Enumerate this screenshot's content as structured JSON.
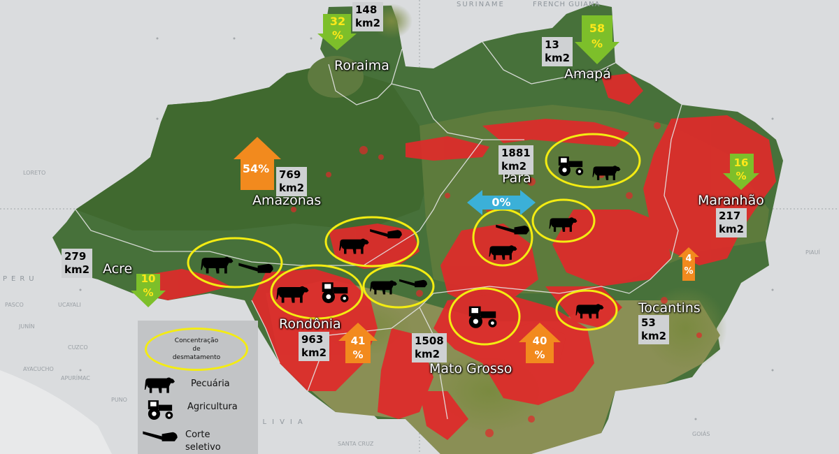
{
  "country_labels": {
    "suriname": "SURINAME",
    "french_guiana": "FRENCH GUIANA",
    "peru": "PERU",
    "bolivia": "BOLIVIA"
  },
  "city_labels": [
    "LORETO",
    "PASCO",
    "UCAYALI",
    "JUNÍN",
    "CUZCO",
    "APURÍMAC",
    "AYACUCHO",
    "PUNO",
    "PIAUÍ",
    "GOIÁS",
    "SANTA CRUZ"
  ],
  "states": [
    {
      "key": "roraima",
      "name": "Roraima",
      "area": "148\nkm2",
      "pct": "32\n%",
      "trend": "down"
    },
    {
      "key": "amapa",
      "name": "Amapá",
      "area": "13\nkm2",
      "pct": "58\n%",
      "trend": "down"
    },
    {
      "key": "amazonas",
      "name": "Amazonas",
      "area": "769\nkm2",
      "pct": "54%",
      "trend": "up"
    },
    {
      "key": "para",
      "name": "Pará",
      "area": "1881\nkm2",
      "pct": "0%",
      "trend": "flat"
    },
    {
      "key": "maranhao",
      "name": "Maranhão",
      "area": "217\nkm2",
      "pct": "16\n%",
      "trend": "down"
    },
    {
      "key": "acre",
      "name": "Acre",
      "area": "279\nkm2",
      "pct": "10\n%",
      "trend": "down"
    },
    {
      "key": "rondonia",
      "name": "Rondônia",
      "area": "963\nkm2",
      "pct": "41\n%",
      "trend": "up"
    },
    {
      "key": "mato_grosso",
      "name": "Mato Grosso",
      "area": "1508\nkm2",
      "pct": "40\n%",
      "trend": "up"
    },
    {
      "key": "tocantins",
      "name": "Tocantins",
      "area": "53\nkm2",
      "pct": "4\n%",
      "trend": "up"
    }
  ],
  "legend": {
    "concentration": "Concentração\nde\ndesmatamento",
    "pecuaria": "Pecuária",
    "agricultura": "Agricultura",
    "corte": "Corte\nseletivo"
  },
  "colors": {
    "forest": "#3f6a2e",
    "deforestation": "#e02a2a",
    "cerrado": "#9c9a5a",
    "arrow_up": "#f28a1e",
    "arrow_down": "#7dbf2a",
    "arrow_flat": "#3bb0d8",
    "pct_up_text": "#ffffff",
    "pct_down_text": "#ffe81a",
    "hotspot": "#f4ec12"
  },
  "hotspots": [
    {
      "name": "para-north",
      "icons": [
        "tractor-icon",
        "cattle-icon"
      ]
    },
    {
      "name": "para-east",
      "icons": [
        "cattle-icon"
      ]
    },
    {
      "name": "para-center",
      "icons": [
        "chainsaw-icon",
        "cattle-icon"
      ]
    },
    {
      "name": "amazonas-south",
      "icons": [
        "cattle-icon",
        "chainsaw-icon"
      ]
    },
    {
      "name": "acre",
      "icons": [
        "cattle-icon",
        "chainsaw-icon"
      ]
    },
    {
      "name": "rondonia",
      "icons": [
        "cattle-icon",
        "tractor-icon"
      ]
    },
    {
      "name": "rondonia-east",
      "icons": [
        "cattle-icon",
        "chainsaw-icon"
      ]
    },
    {
      "name": "mato-grosso",
      "icons": [
        "tractor-icon"
      ]
    },
    {
      "name": "mato-grosso-east",
      "icons": [
        "cattle-icon"
      ]
    }
  ]
}
